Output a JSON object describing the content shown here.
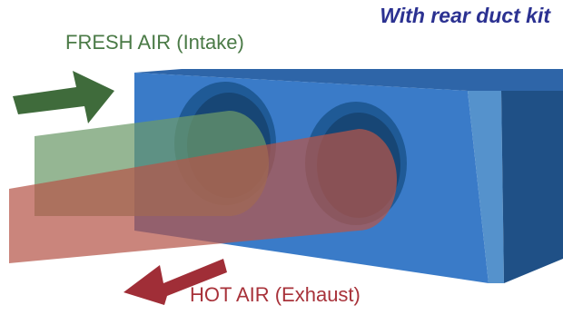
{
  "title": "With rear duct kit",
  "labels": {
    "fresh_air": "FRESH AIR (Intake)",
    "hot_air": "HOT AIR (Exhaust)"
  },
  "icons": {
    "fresh_arrow": "arrow-right-icon",
    "hot_arrow": "arrow-left-icon"
  },
  "colors": {
    "title": "#2b3191",
    "fresh_air": "#4a7a46",
    "hot_air": "#a8323a",
    "unit_front": "#3a7bc8",
    "unit_top": "#2e65a8",
    "unit_side": "#1f5086",
    "unit_edge": "#5592cc",
    "duct_opening": "#1f5a96"
  }
}
